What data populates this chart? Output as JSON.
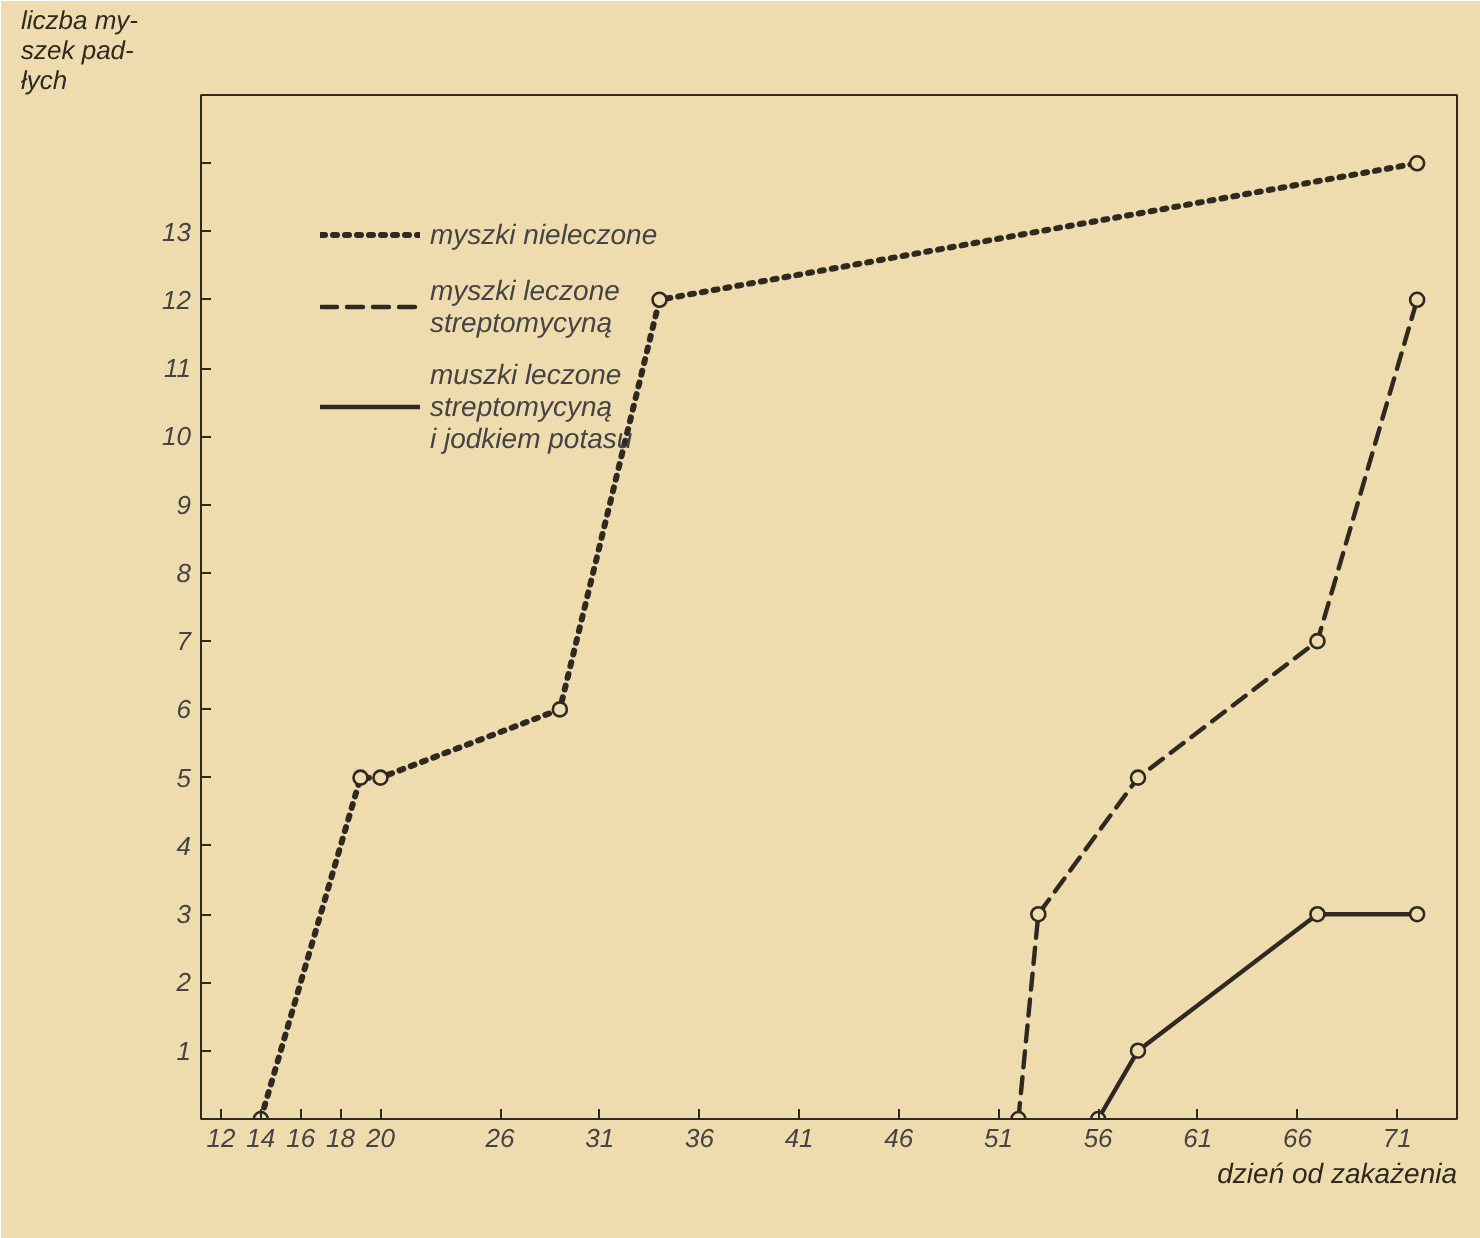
{
  "chart_data": {
    "type": "line",
    "xlabel": "dzień od zakażenia",
    "ylabel": "liczba my-\nszek pad-\nłych",
    "xlim": [
      11,
      74
    ],
    "ylim": [
      0,
      15
    ],
    "xticks": [
      12,
      14,
      16,
      18,
      20,
      26,
      31,
      36,
      41,
      46,
      51,
      56,
      61,
      66,
      71
    ],
    "yticks": [
      1,
      2,
      3,
      4,
      5,
      6,
      7,
      8,
      9,
      10,
      11,
      12,
      13,
      {
        "value": 14,
        "label": null
      }
    ],
    "grid": false,
    "legend": "top left",
    "marker": "circle",
    "series": [
      {
        "name": "myszki nieleczone",
        "color": "#2e2a22",
        "line_style": "dotted",
        "x": [
          14,
          19,
          20,
          29,
          34,
          72
        ],
        "values": [
          0,
          5,
          5,
          6,
          12,
          14
        ]
      },
      {
        "name": "myszki leczone\nstreptomycyną",
        "color": "#2e2a22",
        "line_style": "dashed",
        "x": [
          52,
          53,
          58,
          67,
          72
        ],
        "values": [
          0,
          3,
          5,
          7,
          12
        ]
      },
      {
        "name": "muszki leczone\nstreptomycyną\ni jodkiem potasu",
        "color": "#2e2a22",
        "line_style": "solid",
        "x": [
          56,
          58,
          67,
          72
        ],
        "values": [
          0,
          1,
          3,
          3
        ]
      }
    ]
  }
}
